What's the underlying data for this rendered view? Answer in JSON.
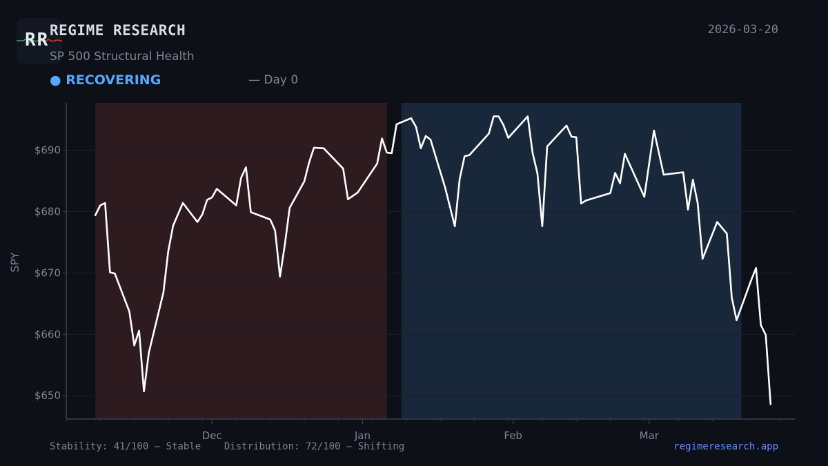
{
  "header": {
    "logo_text": "RR",
    "brand": "REGIME RESEARCH",
    "subtitle": "SP 500 Structural Health",
    "status_dot": "●",
    "status_label": "RECOVERING",
    "status_color": "#58a6ff",
    "day_label": "— Day 0",
    "date": "2026-03-20"
  },
  "footer": {
    "stability": "Stability: 41/100 — Stable",
    "distribution": "Distribution: 72/100 — Shifting",
    "site": "regimeresearch.app"
  },
  "colors": {
    "background": "#0d1017",
    "line": "#ffffff",
    "regime_red": "#2e1b1f",
    "regime_blue": "#19273a",
    "grid": "#1a1f2a"
  },
  "chart_data": {
    "type": "line",
    "ylabel": "SPY",
    "y_tick_format": "$",
    "ylim": [
      646.2,
      697.7
    ],
    "yticks": [
      650,
      660,
      670,
      680,
      690
    ],
    "xlim": [
      "2025-11-01",
      "2026-03-31"
    ],
    "xticks": [
      {
        "label": "Dec",
        "date": "2025-12-01"
      },
      {
        "label": "Jan",
        "date": "2026-01-01"
      },
      {
        "label": "Feb",
        "date": "2026-02-01"
      },
      {
        "label": "Mar",
        "date": "2026-03-01"
      }
    ],
    "grid": true,
    "regimes": [
      {
        "start": "2025-11-07",
        "end": "2026-01-06",
        "color": "#2e1b1f"
      },
      {
        "start": "2026-01-09",
        "end": "2026-03-20",
        "color": "#19273a"
      }
    ],
    "series": [
      {
        "points": [
          [
            "2025-11-07",
            679.4
          ],
          [
            "2025-11-08",
            681.0
          ],
          [
            "2025-11-09",
            681.4
          ],
          [
            "2025-11-10",
            670.1
          ],
          [
            "2025-11-11",
            669.9
          ],
          [
            "2025-11-14",
            663.7
          ],
          [
            "2025-11-15",
            658.2
          ],
          [
            "2025-11-16",
            660.6
          ],
          [
            "2025-11-17",
            650.7
          ],
          [
            "2025-11-18",
            657.0
          ],
          [
            "2025-11-21",
            666.8
          ],
          [
            "2025-11-22",
            673.5
          ],
          [
            "2025-11-23",
            677.7
          ],
          [
            "2025-11-25",
            681.4
          ],
          [
            "2025-11-28",
            678.3
          ],
          [
            "2025-11-29",
            679.5
          ],
          [
            "2025-11-30",
            681.9
          ],
          [
            "2025-12-01",
            682.3
          ],
          [
            "2025-12-02",
            683.7
          ],
          [
            "2025-12-06",
            681.0
          ],
          [
            "2025-12-07",
            685.5
          ],
          [
            "2025-12-08",
            687.2
          ],
          [
            "2025-12-09",
            679.9
          ],
          [
            "2025-12-13",
            678.7
          ],
          [
            "2025-12-14",
            676.9
          ],
          [
            "2025-12-15",
            669.4
          ],
          [
            "2025-12-16",
            674.6
          ],
          [
            "2025-12-17",
            680.6
          ],
          [
            "2025-12-20",
            684.9
          ],
          [
            "2025-12-21",
            688.0
          ],
          [
            "2025-12-22",
            690.4
          ],
          [
            "2025-12-24",
            690.3
          ],
          [
            "2025-12-28",
            687.0
          ],
          [
            "2025-12-29",
            682.0
          ],
          [
            "2025-12-31",
            683.1
          ],
          [
            "2026-01-04",
            687.8
          ],
          [
            "2026-01-05",
            691.9
          ],
          [
            "2026-01-06",
            689.6
          ],
          [
            "2026-01-07",
            689.5
          ],
          [
            "2026-01-08",
            694.2
          ],
          [
            "2026-01-11",
            695.2
          ],
          [
            "2026-01-12",
            693.8
          ],
          [
            "2026-01-13",
            690.3
          ],
          [
            "2026-01-14",
            692.3
          ],
          [
            "2026-01-15",
            691.7
          ],
          [
            "2026-01-18",
            683.9
          ],
          [
            "2026-01-20",
            677.6
          ],
          [
            "2026-01-21",
            685.3
          ],
          [
            "2026-01-22",
            689.0
          ],
          [
            "2026-01-23",
            689.2
          ],
          [
            "2026-01-27",
            692.7
          ],
          [
            "2026-01-28",
            695.5
          ],
          [
            "2026-01-29",
            695.5
          ],
          [
            "2026-01-30",
            694.1
          ],
          [
            "2026-01-31",
            692.0
          ],
          [
            "2026-02-04",
            695.5
          ],
          [
            "2026-02-05",
            689.6
          ],
          [
            "2026-02-06",
            686.2
          ],
          [
            "2026-02-07",
            677.6
          ],
          [
            "2026-02-08",
            690.6
          ],
          [
            "2026-02-12",
            694.0
          ],
          [
            "2026-02-13",
            692.2
          ],
          [
            "2026-02-14",
            692.1
          ],
          [
            "2026-02-15",
            681.3
          ],
          [
            "2026-02-16",
            681.8
          ],
          [
            "2026-02-21",
            683.0
          ],
          [
            "2026-02-22",
            686.3
          ],
          [
            "2026-02-23",
            684.6
          ],
          [
            "2026-02-24",
            689.4
          ],
          [
            "2026-02-28",
            682.4
          ],
          [
            "2026-03-02",
            693.2
          ],
          [
            "2026-03-04",
            686.0
          ],
          [
            "2026-03-08",
            686.4
          ],
          [
            "2026-03-09",
            680.3
          ],
          [
            "2026-03-10",
            685.2
          ],
          [
            "2026-03-11",
            681.3
          ],
          [
            "2026-03-12",
            672.3
          ],
          [
            "2026-03-15",
            678.3
          ],
          [
            "2026-03-17",
            676.4
          ],
          [
            "2026-03-18",
            666.0
          ],
          [
            "2026-03-19",
            662.3
          ],
          [
            "2026-03-22",
            668.8
          ],
          [
            "2026-03-23",
            670.8
          ],
          [
            "2026-03-24",
            661.5
          ],
          [
            "2026-03-25",
            659.9
          ],
          [
            "2026-03-26",
            648.6
          ]
        ]
      }
    ]
  }
}
